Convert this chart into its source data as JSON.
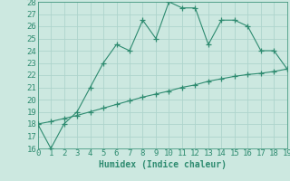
{
  "xlabel": "Humidex (Indice chaleur)",
  "line1_x": [
    0,
    1,
    2,
    3,
    4,
    5,
    6,
    7,
    8,
    9,
    10,
    11,
    12,
    13,
    14,
    15,
    16,
    17,
    18,
    19
  ],
  "line1_y": [
    18,
    16,
    18,
    19,
    21,
    23,
    24.5,
    24,
    26.5,
    25,
    28,
    27.5,
    27.5,
    24.5,
    26.5,
    26.5,
    26,
    24,
    24,
    22.5
  ],
  "line2_x": [
    0,
    1,
    2,
    3,
    4,
    5,
    6,
    7,
    8,
    9,
    10,
    11,
    12,
    13,
    14,
    15,
    16,
    17,
    18,
    19
  ],
  "line2_y": [
    18.0,
    18.2,
    18.45,
    18.7,
    19.0,
    19.3,
    19.6,
    19.9,
    20.2,
    20.45,
    20.7,
    21.0,
    21.2,
    21.5,
    21.7,
    21.9,
    22.05,
    22.15,
    22.3,
    22.5
  ],
  "line_color": "#2e8b70",
  "bg_color": "#cce8e0",
  "grid_color": "#aed4cc",
  "ylim": [
    16,
    28
  ],
  "xlim": [
    0,
    19
  ],
  "yticks": [
    16,
    17,
    18,
    19,
    20,
    21,
    22,
    23,
    24,
    25,
    26,
    27,
    28
  ],
  "xticks": [
    0,
    1,
    2,
    3,
    4,
    5,
    6,
    7,
    8,
    9,
    10,
    11,
    12,
    13,
    14,
    15,
    16,
    17,
    18,
    19
  ],
  "marker": "+",
  "markersize": 4,
  "linewidth": 0.8,
  "tick_fontsize": 6.5
}
